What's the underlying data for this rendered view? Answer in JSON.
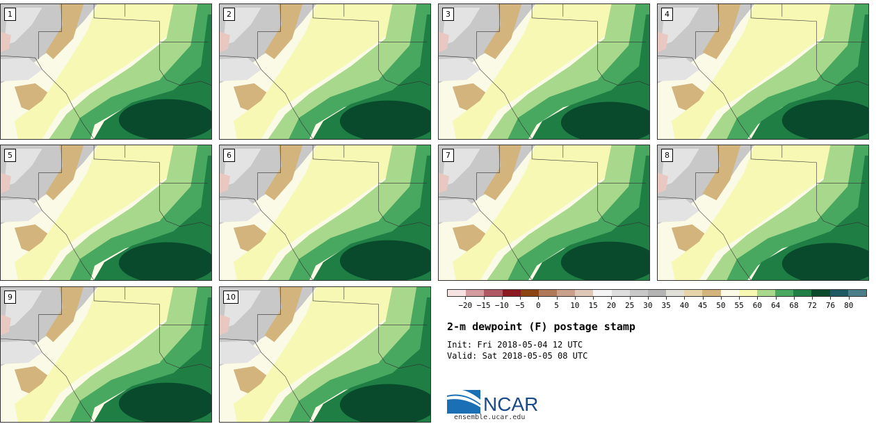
{
  "title": "2-m dewpoint (F) postage stamp",
  "init_label": "Init:",
  "init_value": "Fri 2018-05-04 12 UTC",
  "valid_label": "Valid:",
  "valid_value": "Sat 2018-05-05 08 UTC",
  "logo_text": "NCAR",
  "website": "ensemble.ucar.edu",
  "members": [
    "1",
    "2",
    "3",
    "4",
    "5",
    "6",
    "7",
    "8",
    "9",
    "10"
  ],
  "colorbar": {
    "tick_labels": [
      "−20",
      "−15",
      "−10",
      "−5",
      "0",
      "5",
      "10",
      "15",
      "20",
      "25",
      "30",
      "35",
      "40",
      "45",
      "50",
      "55",
      "60",
      "64",
      "68",
      "72",
      "76",
      "80"
    ],
    "colors": [
      "#f5e3e3",
      "#d39aa0",
      "#b05a66",
      "#8b1a22",
      "#8b4513",
      "#b07a58",
      "#c9a08a",
      "#e0c8b8",
      "#f4f4f4",
      "#dedede",
      "#c8c8c8",
      "#b4b4b4",
      "#e0e0d8",
      "#e6d4aa",
      "#d2b47c",
      "#fafae6",
      "#f6f8b4",
      "#a8d88c",
      "#48a860",
      "#1e7e44",
      "#0a4a2c",
      "#1e5a64",
      "#4a7e88"
    ]
  },
  "map_colors": {
    "gray": "#c8c8c8",
    "light_gray": "#e3e3e3",
    "tan": "#d2b47c",
    "pale": "#fafae6",
    "light_yellow": "#f6f8b4",
    "light_green": "#a8d88c",
    "green": "#48a860",
    "dark_green": "#1e7e44",
    "darkest_green": "#0a4a2c",
    "pink": "#e8c8c0"
  }
}
